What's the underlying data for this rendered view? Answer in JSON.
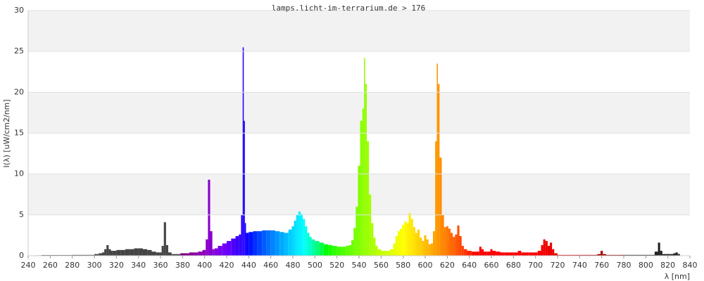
{
  "chart_data": {
    "type": "spectrum",
    "title": "lamps.licht-im-terrarium.de > 176",
    "xlabel": "λ [nm]",
    "ylabel": "I(λ)  [uW/cm2/nm]",
    "xlim": [
      240,
      840
    ],
    "ylim": [
      0,
      30
    ],
    "xticks": [
      240,
      260,
      280,
      300,
      320,
      340,
      360,
      380,
      400,
      420,
      440,
      460,
      480,
      500,
      520,
      540,
      560,
      580,
      600,
      620,
      640,
      660,
      680,
      700,
      720,
      740,
      760,
      780,
      800,
      820,
      840
    ],
    "yticks": [
      0,
      5,
      10,
      15,
      20,
      25,
      30
    ],
    "grid": true,
    "x": [
      250,
      254,
      258,
      262,
      266,
      270,
      274,
      278,
      282,
      286,
      290,
      294,
      298,
      302,
      306,
      308,
      310,
      312,
      314,
      316,
      318,
      322,
      326,
      330,
      334,
      338,
      342,
      346,
      350,
      354,
      358,
      360,
      362,
      364,
      366,
      368,
      372,
      376,
      380,
      384,
      388,
      392,
      396,
      400,
      402,
      404,
      406,
      408,
      410,
      414,
      418,
      422,
      426,
      430,
      432,
      434,
      435,
      436,
      437,
      438,
      442,
      446,
      450,
      454,
      458,
      462,
      466,
      470,
      474,
      478,
      480,
      482,
      484,
      486,
      488,
      490,
      492,
      494,
      496,
      498,
      502,
      506,
      510,
      514,
      518,
      522,
      526,
      530,
      532,
      534,
      536,
      538,
      540,
      542,
      544,
      545,
      546,
      548,
      550,
      552,
      554,
      556,
      558,
      562,
      566,
      570,
      572,
      574,
      576,
      578,
      580,
      582,
      584,
      586,
      588,
      590,
      592,
      594,
      596,
      598,
      600,
      602,
      604,
      606,
      608,
      610,
      611,
      612,
      614,
      616,
      618,
      620,
      622,
      624,
      626,
      628,
      630,
      632,
      634,
      636,
      640,
      644,
      648,
      650,
      652,
      654,
      658,
      660,
      662,
      666,
      670,
      674,
      678,
      682,
      686,
      688,
      692,
      696,
      700,
      704,
      706,
      708,
      710,
      712,
      714,
      716,
      718,
      722,
      726,
      730,
      734,
      738,
      742,
      746,
      750,
      754,
      758,
      760,
      762,
      766,
      770,
      774,
      778,
      782,
      786,
      790,
      794,
      798,
      802,
      806,
      810,
      812,
      814,
      816,
      820,
      824,
      826,
      828,
      830
    ],
    "values": [
      0.05,
      0.08,
      0.08,
      0.08,
      0.08,
      0.08,
      0.08,
      0.08,
      0.1,
      0.1,
      0.1,
      0.1,
      0.1,
      0.2,
      0.3,
      0.4,
      0.8,
      1.3,
      0.8,
      0.6,
      0.6,
      0.7,
      0.7,
      0.8,
      0.8,
      0.9,
      0.9,
      0.8,
      0.7,
      0.5,
      0.4,
      0.4,
      1.2,
      4.1,
      1.3,
      0.4,
      0.2,
      0.2,
      0.3,
      0.3,
      0.4,
      0.4,
      0.5,
      0.7,
      2,
      9.3,
      3,
      0.8,
      0.9,
      1.2,
      1.5,
      1.8,
      2.1,
      2.4,
      2.6,
      5,
      25.5,
      16.5,
      4,
      2.8,
      2.9,
      3,
      3,
      3.1,
      3.1,
      3.1,
      3,
      2.9,
      2.8,
      3.2,
      3.6,
      4.3,
      5,
      5.4,
      5.1,
      4.5,
      3.6,
      2.8,
      2.3,
      2,
      1.8,
      1.6,
      1.4,
      1.3,
      1.2,
      1.1,
      1.1,
      1.2,
      1.3,
      1.9,
      3.4,
      6,
      11,
      16.5,
      18,
      24.2,
      21,
      14,
      7.5,
      4,
      2.2,
      1.2,
      0.8,
      0.6,
      0.6,
      0.8,
      1.5,
      2.4,
      3,
      3.3,
      3.8,
      4.2,
      4,
      5.2,
      4.5,
      3.5,
      2.8,
      3.2,
      2.2,
      1.8,
      2.5,
      2,
      1.4,
      1.5,
      3,
      14,
      23.5,
      21,
      12,
      5,
      3.5,
      3.6,
      3.3,
      2.8,
      2.3,
      2.6,
      3.7,
      2.4,
      1.2,
      0.8,
      0.6,
      0.5,
      0.5,
      1.1,
      0.8,
      0.5,
      0.5,
      0.8,
      0.6,
      0.5,
      0.4,
      0.4,
      0.4,
      0.4,
      0.6,
      0.4,
      0.4,
      0.4,
      0.4,
      0.6,
      1.3,
      2,
      1.8,
      1.2,
      1.6,
      0.8,
      0.3,
      0.1,
      0.1,
      0.1,
      0.1,
      0.1,
      0.1,
      0.1,
      0.1,
      0.1,
      0.2,
      0.6,
      0.2,
      0.1,
      0.1,
      0.1,
      0.1,
      0.1,
      0.1,
      0.1,
      0.1,
      0.1,
      0.1,
      0.1,
      0.5,
      1.6,
      0.6,
      0.2,
      0.2,
      0.2,
      0.3,
      0.4,
      0.2
    ]
  }
}
